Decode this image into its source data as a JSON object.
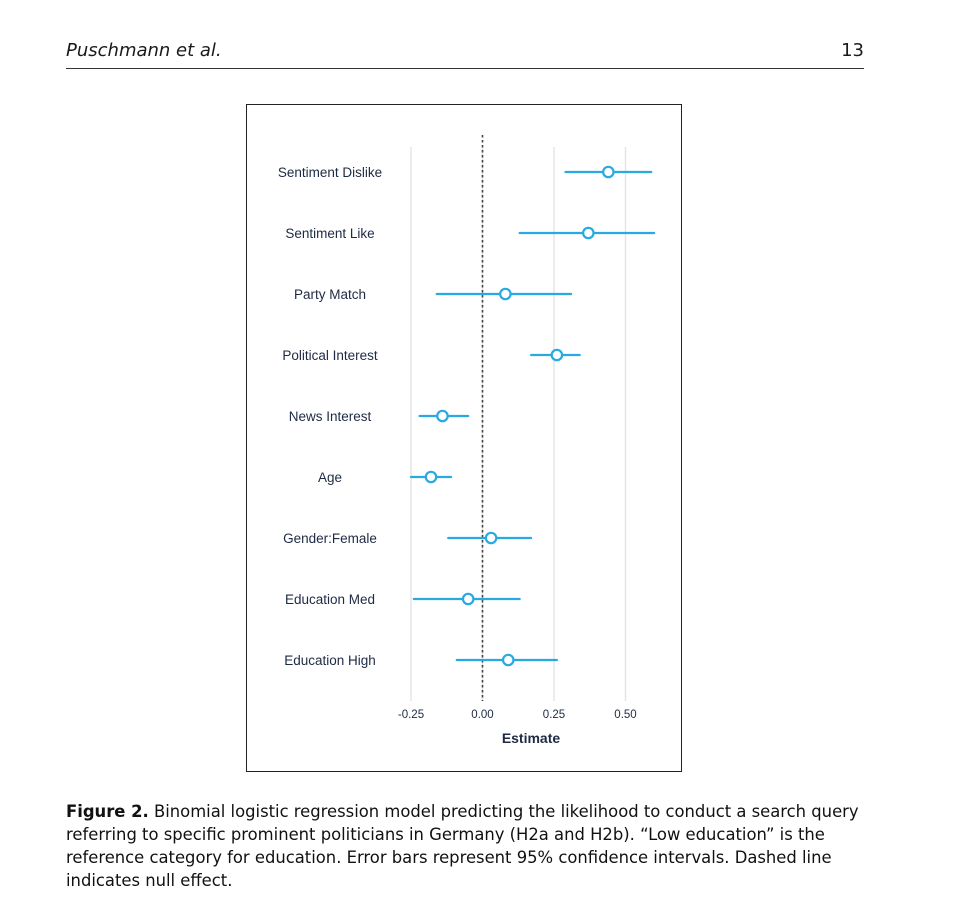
{
  "header": {
    "author": "Puschmann et al.",
    "page_number": "13"
  },
  "figure": {
    "caption_label": "Figure 2.",
    "caption_text": "Binomial logistic regression model predicting the likelihood to conduct a search query referring to specific prominent politicians in Germany (H2a and H2b). “Low education” is the reference category for education. Error bars represent 95% confidence intervals. Dashed line indicates null effect."
  },
  "chart_data": {
    "type": "scatter",
    "subtype": "coefficient-plot",
    "xlabel": "Estimate",
    "ylabel": "",
    "xlim": [
      -0.3,
      0.67
    ],
    "x_ticks": [
      -0.25,
      0.0,
      0.25,
      0.5
    ],
    "x_tick_labels": [
      "-0.25",
      "0.00",
      "0.25",
      "0.50"
    ],
    "grid": "vertical",
    "null_line": 0,
    "series_color": "#29a9e1",
    "categories": [
      "Sentiment Dislike",
      "Sentiment Like",
      "Party Match",
      "Political Interest",
      "News Interest",
      "Age",
      "Gender:Female",
      "Education Med",
      "Education High"
    ],
    "estimates": [
      0.44,
      0.37,
      0.08,
      0.26,
      -0.14,
      -0.18,
      0.03,
      -0.05,
      0.09
    ],
    "ci_low": [
      0.29,
      0.13,
      -0.16,
      0.17,
      -0.22,
      -0.25,
      -0.12,
      -0.24,
      -0.09
    ],
    "ci_high": [
      0.59,
      0.6,
      0.31,
      0.34,
      -0.05,
      -0.11,
      0.17,
      0.13,
      0.26
    ]
  }
}
